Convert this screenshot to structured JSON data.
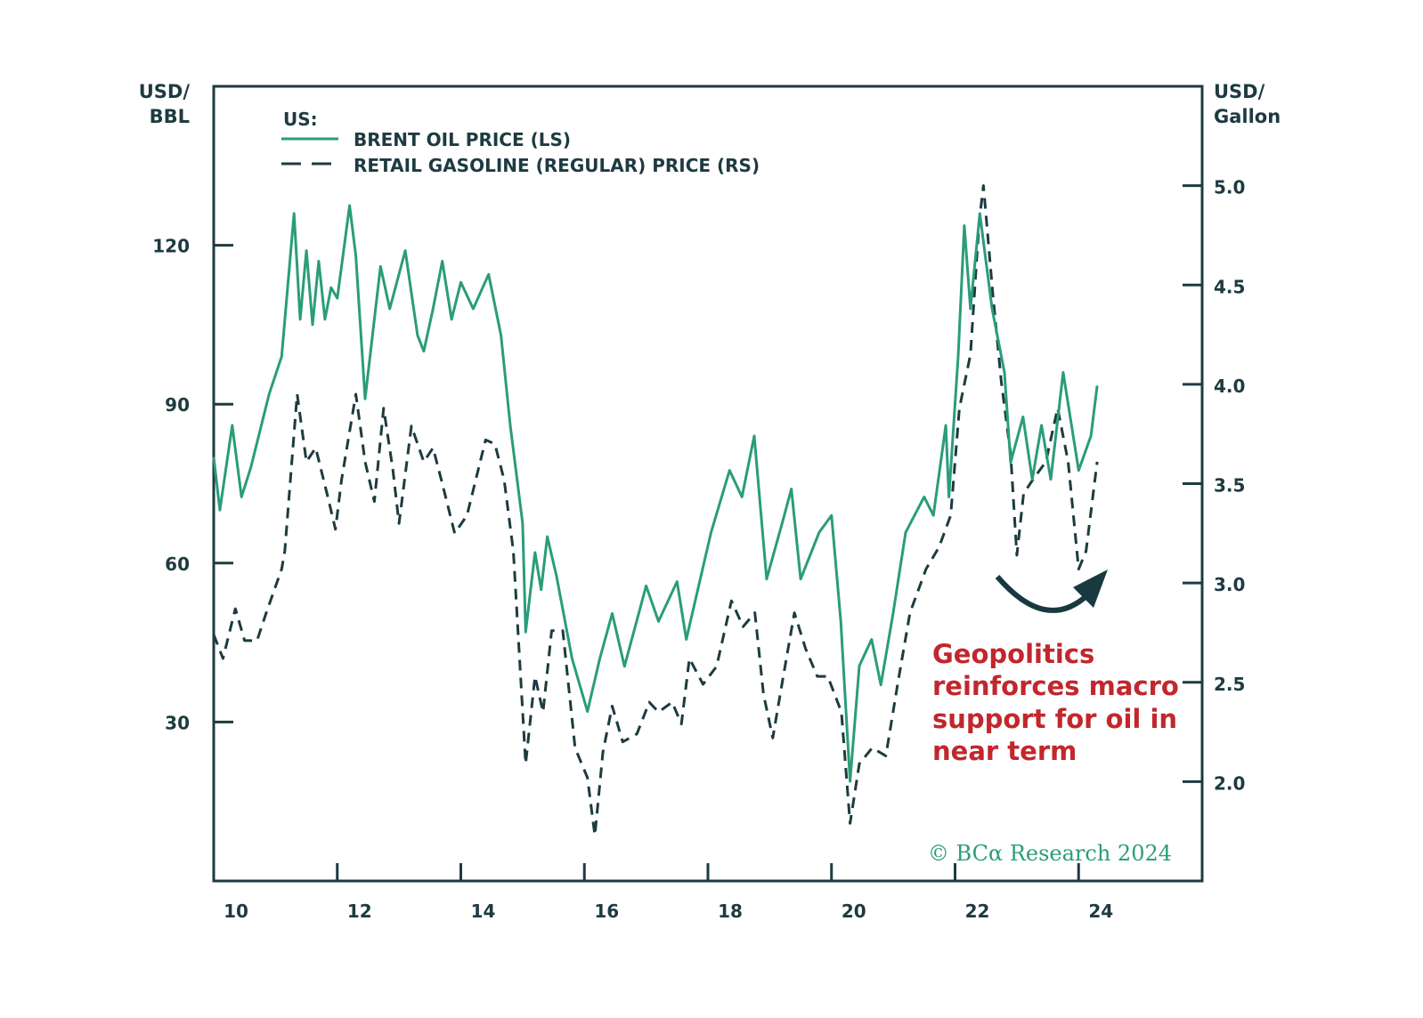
{
  "chart_data": {
    "type": "line",
    "left_axis": {
      "label_lines": [
        "USD/",
        "BBL"
      ],
      "range": [
        0,
        150
      ],
      "ticks": [
        30,
        60,
        90,
        120
      ],
      "tick_labels": [
        "30",
        "60",
        "90",
        "120"
      ]
    },
    "right_axis": {
      "label_lines": [
        "USD/",
        "Gallon"
      ],
      "range": [
        1.5,
        5.5
      ],
      "ticks": [
        2.0,
        2.5,
        3.0,
        3.5,
        4.0,
        4.5,
        5.0
      ],
      "tick_labels": [
        "2.0",
        "2.5",
        "3.0",
        "3.5",
        "4.0",
        "4.5",
        "5.0"
      ]
    },
    "x_axis": {
      "range": [
        2010,
        2026
      ],
      "ticks": [
        2010,
        2012,
        2014,
        2016,
        2018,
        2020,
        2022,
        2024
      ],
      "tick_labels": [
        "10",
        "12",
        "14",
        "16",
        "18",
        "20",
        "22",
        "24"
      ]
    },
    "grid": false,
    "legend": {
      "placement": "top-left",
      "title": "US:"
    },
    "series": [
      {
        "name": "BRENT OIL PRICE (LS)",
        "axis": "left",
        "color": "#2a9d78",
        "style": "solid",
        "points": [
          [
            2010.0,
            80
          ],
          [
            2010.1,
            70
          ],
          [
            2010.3,
            86
          ],
          [
            2010.45,
            72.5
          ],
          [
            2010.6,
            78
          ],
          [
            2010.9,
            92
          ],
          [
            2011.1,
            99
          ],
          [
            2011.3,
            126
          ],
          [
            2011.4,
            106
          ],
          [
            2011.5,
            119
          ],
          [
            2011.6,
            105
          ],
          [
            2011.7,
            117
          ],
          [
            2011.8,
            106
          ],
          [
            2011.9,
            112
          ],
          [
            2012.0,
            110
          ],
          [
            2012.2,
            127.5
          ],
          [
            2012.3,
            118
          ],
          [
            2012.45,
            91
          ],
          [
            2012.7,
            116
          ],
          [
            2012.85,
            108
          ],
          [
            2013.1,
            119
          ],
          [
            2013.3,
            103
          ],
          [
            2013.4,
            100
          ],
          [
            2013.55,
            108
          ],
          [
            2013.7,
            117
          ],
          [
            2013.85,
            106
          ],
          [
            2014.0,
            113
          ],
          [
            2014.2,
            108
          ],
          [
            2014.45,
            114.5
          ],
          [
            2014.65,
            103
          ],
          [
            2014.8,
            86
          ],
          [
            2015.0,
            67.5
          ],
          [
            2015.05,
            47
          ],
          [
            2015.2,
            62
          ],
          [
            2015.3,
            55
          ],
          [
            2015.4,
            65
          ],
          [
            2015.55,
            57.5
          ],
          [
            2015.8,
            42
          ],
          [
            2016.05,
            32
          ],
          [
            2016.25,
            42
          ],
          [
            2016.45,
            50.5
          ],
          [
            2016.65,
            40.5
          ],
          [
            2017.0,
            55.7
          ],
          [
            2017.2,
            49
          ],
          [
            2017.5,
            56.5
          ],
          [
            2017.65,
            45.6
          ],
          [
            2018.05,
            65.8
          ],
          [
            2018.35,
            77.5
          ],
          [
            2018.55,
            72.5
          ],
          [
            2018.75,
            84
          ],
          [
            2018.95,
            57
          ],
          [
            2019.2,
            67.5
          ],
          [
            2019.35,
            74
          ],
          [
            2019.5,
            57
          ],
          [
            2019.8,
            65.8
          ],
          [
            2020.0,
            69
          ],
          [
            2020.15,
            49
          ],
          [
            2020.3,
            18.8
          ],
          [
            2020.45,
            40.6
          ],
          [
            2020.65,
            45.6
          ],
          [
            2020.8,
            37
          ],
          [
            2021.0,
            50.7
          ],
          [
            2021.2,
            65.8
          ],
          [
            2021.5,
            72.5
          ],
          [
            2021.65,
            69
          ],
          [
            2021.85,
            86
          ],
          [
            2021.9,
            72.5
          ],
          [
            2022.05,
            99
          ],
          [
            2022.15,
            123.7
          ],
          [
            2022.25,
            108
          ],
          [
            2022.4,
            126
          ],
          [
            2022.6,
            108
          ],
          [
            2022.8,
            96
          ],
          [
            2022.9,
            79
          ],
          [
            2023.1,
            87.6
          ],
          [
            2023.25,
            75.8
          ],
          [
            2023.4,
            86
          ],
          [
            2023.55,
            75.8
          ],
          [
            2023.75,
            96
          ],
          [
            2024.0,
            77.5
          ],
          [
            2024.2,
            84
          ],
          [
            2024.3,
            93.5
          ]
        ]
      },
      {
        "name": "RETAIL GASOLINE (REGULAR) PRICE (RS)",
        "axis": "right",
        "color": "#1d3b40",
        "style": "dashed",
        "points": [
          [
            2010.0,
            2.74
          ],
          [
            2010.15,
            2.62
          ],
          [
            2010.35,
            2.87
          ],
          [
            2010.5,
            2.71
          ],
          [
            2010.7,
            2.71
          ],
          [
            2010.85,
            2.85
          ],
          [
            2011.1,
            3.07
          ],
          [
            2011.15,
            3.16
          ],
          [
            2011.35,
            3.95
          ],
          [
            2011.5,
            3.61
          ],
          [
            2011.65,
            3.68
          ],
          [
            2011.85,
            3.43
          ],
          [
            2011.97,
            3.27
          ],
          [
            2012.07,
            3.52
          ],
          [
            2012.3,
            3.95
          ],
          [
            2012.45,
            3.61
          ],
          [
            2012.6,
            3.41
          ],
          [
            2012.75,
            3.88
          ],
          [
            2012.9,
            3.57
          ],
          [
            2013.0,
            3.3
          ],
          [
            2013.2,
            3.79
          ],
          [
            2013.4,
            3.61
          ],
          [
            2013.55,
            3.68
          ],
          [
            2013.7,
            3.5
          ],
          [
            2013.9,
            3.25
          ],
          [
            2014.1,
            3.34
          ],
          [
            2014.4,
            3.72
          ],
          [
            2014.55,
            3.7
          ],
          [
            2014.7,
            3.52
          ],
          [
            2014.85,
            3.16
          ],
          [
            2015.05,
            2.09
          ],
          [
            2015.2,
            2.53
          ],
          [
            2015.33,
            2.35
          ],
          [
            2015.47,
            2.76
          ],
          [
            2015.65,
            2.76
          ],
          [
            2015.85,
            2.17
          ],
          [
            2016.05,
            2.02
          ],
          [
            2016.17,
            1.73
          ],
          [
            2016.3,
            2.15
          ],
          [
            2016.45,
            2.38
          ],
          [
            2016.62,
            2.2
          ],
          [
            2016.85,
            2.24
          ],
          [
            2017.05,
            2.4
          ],
          [
            2017.2,
            2.35
          ],
          [
            2017.42,
            2.4
          ],
          [
            2017.57,
            2.29
          ],
          [
            2017.7,
            2.62
          ],
          [
            2017.92,
            2.49
          ],
          [
            2018.14,
            2.58
          ],
          [
            2018.38,
            2.91
          ],
          [
            2018.57,
            2.78
          ],
          [
            2018.76,
            2.85
          ],
          [
            2018.9,
            2.44
          ],
          [
            2019.05,
            2.22
          ],
          [
            2019.22,
            2.53
          ],
          [
            2019.4,
            2.85
          ],
          [
            2019.58,
            2.67
          ],
          [
            2019.77,
            2.53
          ],
          [
            2019.94,
            2.53
          ],
          [
            2020.16,
            2.35
          ],
          [
            2020.3,
            1.79
          ],
          [
            2020.45,
            2.09
          ],
          [
            2020.66,
            2.17
          ],
          [
            2020.88,
            2.13
          ],
          [
            2021.07,
            2.49
          ],
          [
            2021.27,
            2.85
          ],
          [
            2021.53,
            3.07
          ],
          [
            2021.74,
            3.18
          ],
          [
            2021.93,
            3.34
          ],
          [
            2022.07,
            3.88
          ],
          [
            2022.25,
            4.15
          ],
          [
            2022.39,
            4.82
          ],
          [
            2022.46,
            5.0
          ],
          [
            2022.61,
            4.46
          ],
          [
            2022.75,
            4.01
          ],
          [
            2022.9,
            3.65
          ],
          [
            2023.0,
            3.14
          ],
          [
            2023.11,
            3.45
          ],
          [
            2023.26,
            3.52
          ],
          [
            2023.47,
            3.61
          ],
          [
            2023.66,
            3.88
          ],
          [
            2023.83,
            3.61
          ],
          [
            2024.0,
            3.07
          ],
          [
            2024.12,
            3.16
          ],
          [
            2024.3,
            3.61
          ]
        ]
      }
    ],
    "annotation": {
      "lines": [
        "Geopolitics",
        "reinforces macro",
        "support for oil in",
        "near term"
      ],
      "color": "#c1272d"
    },
    "arrow": {
      "color": "#17393f"
    },
    "source": "© BCα Research 2024",
    "source_color": "#2a9d78"
  }
}
